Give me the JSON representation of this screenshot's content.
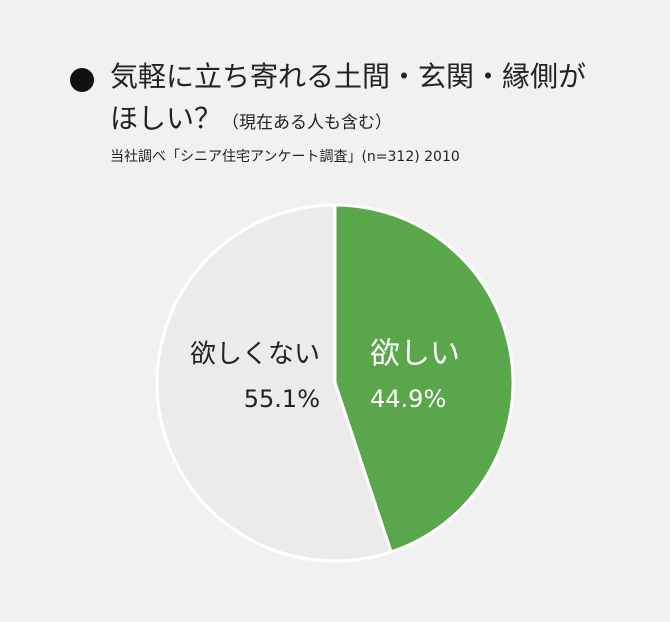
{
  "chart_data": {
    "type": "pie",
    "title": "気軽に立ち寄れる土間・玄関・縁側がほしい？",
    "subtitle": "（現在ある人も含む）",
    "source": "当社調べ「シニア住宅アンケート調査」(n=312) 2010",
    "categories": [
      "欲しい",
      "欲しくない"
    ],
    "values": [
      44.9,
      55.1
    ],
    "value_labels": [
      "44.9%",
      "55.1%"
    ],
    "colors": [
      "#5aa64a",
      "#ebebeb"
    ],
    "label_colors": [
      "#ffffff",
      "#222222"
    ]
  }
}
